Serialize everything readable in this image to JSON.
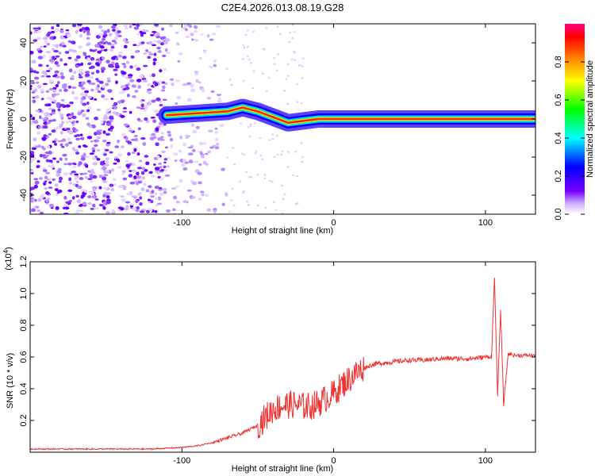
{
  "title": "C2E4.2026.013.08.19.G28",
  "chart_data": [
    {
      "type": "heatmap",
      "xlabel": "Height of straight line (km)",
      "ylabel": "Frequency (Hz)",
      "xlim": [
        -200,
        133
      ],
      "ylim": [
        -50,
        50
      ],
      "xticks": [
        -100,
        0,
        100
      ],
      "yticks": [
        40,
        20,
        0,
        -20,
        -40
      ],
      "colorbar": {
        "label": "Normalized spectral amplitude",
        "range": [
          0.0,
          1.0
        ],
        "ticks": [
          0.0,
          0.2,
          0.4,
          0.6,
          0.8
        ],
        "colors": [
          "#ffffff",
          "#7a00ff",
          "#0000ff",
          "#00ffff",
          "#00ff00",
          "#ffff00",
          "#ff8000",
          "#ff0000",
          "#ff0080"
        ]
      },
      "ridge": [
        {
          "x": -110,
          "y": 2
        },
        {
          "x": -90,
          "y": 3
        },
        {
          "x": -70,
          "y": 4
        },
        {
          "x": -60,
          "y": 6
        },
        {
          "x": -50,
          "y": 4
        },
        {
          "x": -40,
          "y": 1
        },
        {
          "x": -30,
          "y": -2
        },
        {
          "x": -20,
          "y": -1
        },
        {
          "x": -10,
          "y": 0
        },
        {
          "x": 0,
          "y": 0
        },
        {
          "x": 10,
          "y": 0
        },
        {
          "x": 50,
          "y": 0
        },
        {
          "x": 100,
          "y": 0
        },
        {
          "x": 110,
          "y": 0
        },
        {
          "x": 133,
          "y": 0
        }
      ],
      "noise_band": [
        -200,
        -70
      ]
    },
    {
      "type": "line",
      "xlabel": "Height of straight line (km)",
      "ylabel": "SNR (10 * v/v)",
      "y_multiplier": "(x10^4)",
      "y_multiplier_base": "(x10",
      "y_multiplier_exp": "4",
      "y_multiplier_close": ")",
      "xlim": [
        -200,
        133
      ],
      "ylim": [
        0.0,
        1.2
      ],
      "xticks": [
        -100,
        0,
        100
      ],
      "yticks": [
        0.2,
        0.4,
        0.6,
        0.8,
        1.0,
        1.2
      ],
      "color": "#ee3333",
      "series": [
        {
          "x": [
            -200,
            -180,
            -160,
            -140,
            -120,
            -100,
            -90,
            -80,
            -70,
            -60,
            -50,
            -45,
            -40,
            -35,
            -30,
            -25,
            -20,
            -15,
            -10,
            -5,
            0,
            5,
            10,
            15,
            20,
            25,
            30,
            40,
            50,
            60,
            70,
            80,
            90,
            100,
            104,
            106,
            108,
            110,
            112,
            115,
            120,
            125,
            133
          ],
          "y": [
            0.02,
            0.02,
            0.02,
            0.02,
            0.02,
            0.03,
            0.04,
            0.06,
            0.09,
            0.12,
            0.17,
            0.22,
            0.27,
            0.29,
            0.3,
            0.3,
            0.29,
            0.29,
            0.31,
            0.34,
            0.37,
            0.42,
            0.46,
            0.5,
            0.53,
            0.55,
            0.56,
            0.57,
            0.58,
            0.58,
            0.59,
            0.59,
            0.59,
            0.6,
            0.6,
            1.1,
            0.35,
            0.9,
            0.3,
            0.62,
            0.61,
            0.61,
            0.61
          ]
        }
      ]
    }
  ]
}
